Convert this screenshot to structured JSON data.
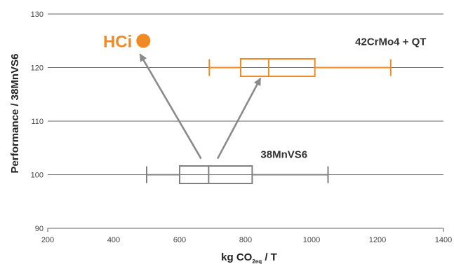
{
  "chart_data": {
    "type": "boxplot",
    "xlabel": "kg CO",
    "xlabel_sub": "2eq",
    "xlabel_tail": " / T",
    "ylabel": "Performance / 38MnVS6",
    "xlim": [
      200,
      1400
    ],
    "ylim": [
      90,
      130
    ],
    "x_ticks": [
      "200",
      "400",
      "600",
      "800",
      "1000",
      "1200",
      "1400"
    ],
    "y_ticks": [
      "90",
      "100",
      "110",
      "120",
      "130"
    ],
    "grid": "horizontal",
    "series": [
      {
        "name": "38MnVS6",
        "color": "#808080",
        "y": 100,
        "min": 500,
        "q1": 600,
        "median": 688,
        "q3": 820,
        "max": 1050
      },
      {
        "name": "42CrMo4 + QT",
        "color": "#f08a24",
        "y": 120,
        "min": 690,
        "q1": 785,
        "median": 870,
        "q3": 1010,
        "max": 1240
      }
    ],
    "points": [
      {
        "name": "HCi",
        "color": "#f08a24",
        "x": 490,
        "y": 125
      }
    ],
    "arrows": [
      {
        "from": [
          665,
          103
        ],
        "to": [
          480,
          122.5
        ]
      },
      {
        "from": [
          715,
          103
        ],
        "to": [
          845,
          118
        ]
      }
    ]
  }
}
